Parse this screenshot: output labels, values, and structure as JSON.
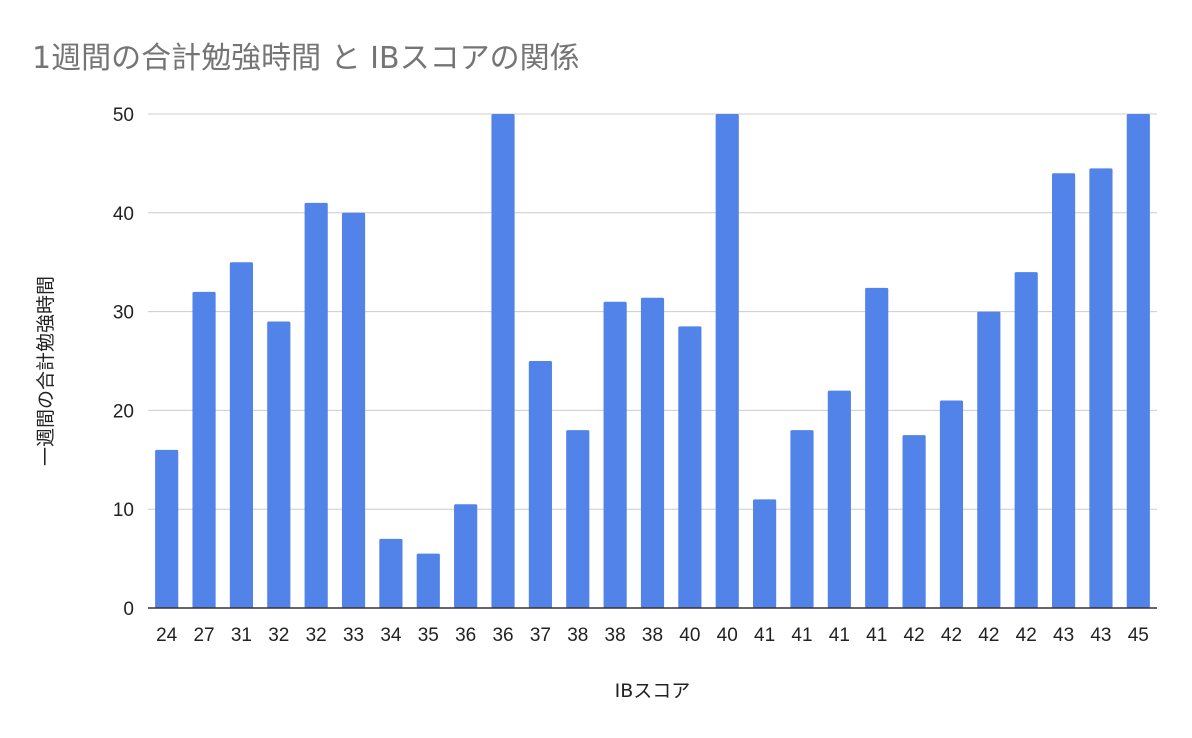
{
  "chart_data": {
    "type": "bar",
    "title": "1週間の合計勉強時間 と IBスコアの関係",
    "xlabel": "IBスコア",
    "ylabel": "一週間の合計勉強時間",
    "categories": [
      "24",
      "27",
      "31",
      "32",
      "32",
      "33",
      "34",
      "35",
      "36",
      "36",
      "37",
      "38",
      "38",
      "38",
      "40",
      "40",
      "41",
      "41",
      "41",
      "41",
      "42",
      "42",
      "42",
      "42",
      "43",
      "43",
      "45"
    ],
    "series": [
      {
        "values": [
          16,
          32,
          35,
          29,
          41,
          40,
          7,
          5.5,
          10.5,
          50,
          25,
          18,
          31,
          31.4,
          28.5,
          50,
          11,
          18,
          22,
          32.4,
          17.5,
          21,
          30,
          34,
          44,
          44.5,
          50
        ],
        "color": "#5183e8"
      }
    ],
    "ylim": [
      0,
      50
    ],
    "yticks": [
      0,
      10,
      20,
      30,
      40,
      50
    ],
    "grid": true,
    "legend": "none"
  }
}
